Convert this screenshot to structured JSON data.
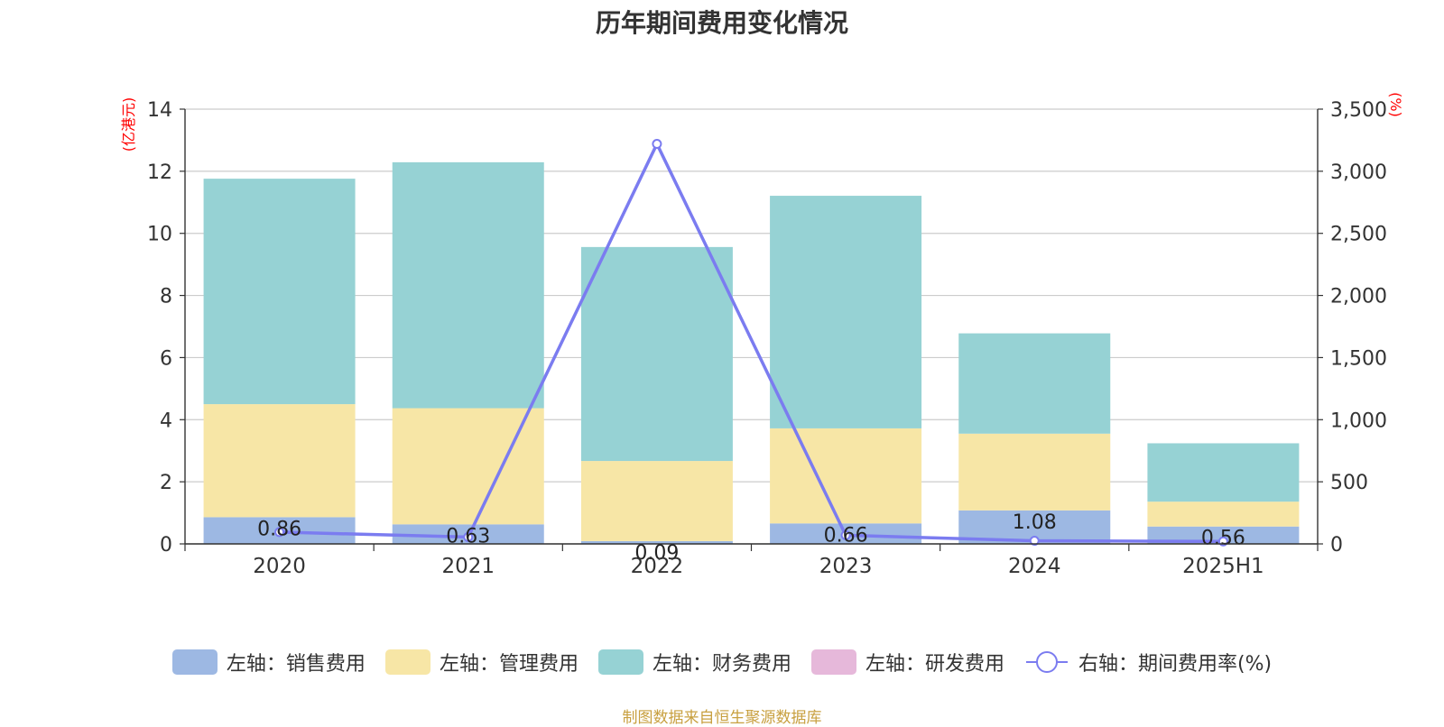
{
  "chart_data": {
    "type": "bar",
    "title": "历年期间费用变化情况",
    "categories": [
      "2020",
      "2021",
      "2022",
      "2023",
      "2024",
      "2025H1"
    ],
    "left_axis": {
      "unit": "(亿港元)",
      "ylim": [
        0,
        14
      ],
      "ticks": [
        "0",
        "2",
        "4",
        "6",
        "8",
        "10",
        "12",
        "14"
      ]
    },
    "right_axis": {
      "unit": "(%)",
      "ylim": [
        0,
        3500
      ],
      "ticks": [
        "0",
        "500",
        "1,000",
        "1,500",
        "2,000",
        "2,500",
        "3,000",
        "3,500"
      ]
    },
    "series": [
      {
        "name": "左轴：销售费用",
        "kind": "bar",
        "stack": "left",
        "color": "#9db8e3",
        "values": [
          0.86,
          0.63,
          0.09,
          0.66,
          1.08,
          0.56
        ],
        "labels": [
          "0.86",
          "0.63",
          "0.09",
          "0.66",
          "1.08",
          "0.56"
        ]
      },
      {
        "name": "左轴：管理费用",
        "kind": "bar",
        "stack": "left",
        "color": "#f7e6a6",
        "values": [
          3.64,
          3.74,
          2.58,
          3.06,
          2.47,
          0.8
        ]
      },
      {
        "name": "左轴：财务费用",
        "kind": "bar",
        "stack": "left",
        "color": "#96d2d4",
        "values": [
          7.26,
          7.92,
          6.89,
          7.49,
          3.23,
          1.88
        ]
      },
      {
        "name": "左轴：研发费用",
        "kind": "bar",
        "stack": "left",
        "color": "#e6b8da",
        "values": [
          0,
          0,
          0,
          0,
          0,
          0
        ]
      },
      {
        "name": "右轴：期间费用率(%)",
        "kind": "line",
        "axis": "right",
        "color": "#7b7cf0",
        "values": [
          95,
          55,
          3220,
          70,
          25,
          20
        ]
      }
    ],
    "grid": true,
    "legend_position": "bottom"
  },
  "source": "制图数据来自恒生聚源数据库"
}
